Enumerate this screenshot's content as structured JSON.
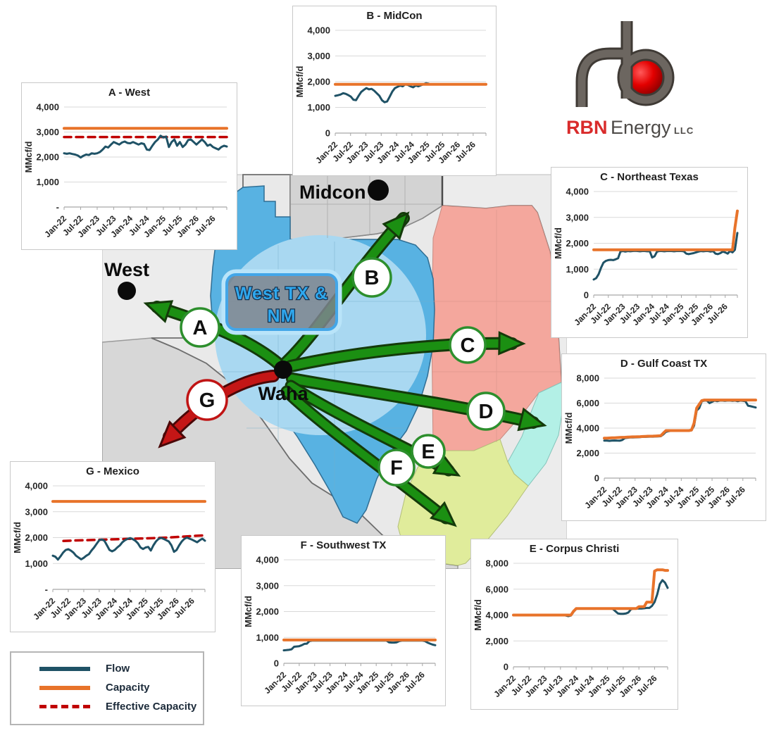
{
  "logo": {
    "brand_red": "RBN",
    "brand_gray": "Energy",
    "brand_suffix": "LLC"
  },
  "legend": {
    "items": [
      {
        "label": "Flow",
        "color": "#1F5266",
        "style": "solid"
      },
      {
        "label": "Capacity",
        "color": "#E8732A",
        "style": "solid"
      },
      {
        "label": "Effective Capacity",
        "color": "#C00000",
        "style": "dashed"
      }
    ]
  },
  "map": {
    "hub_label": "Waha",
    "west_label": "West",
    "midcon_label": "Midcon",
    "region_box": {
      "line1": "West TX &",
      "line2": "NM"
    },
    "arrows": [
      {
        "label": "A",
        "destination": "West",
        "color": "#1B8F12"
      },
      {
        "label": "B",
        "destination": "MidCon",
        "color": "#1B8F12"
      },
      {
        "label": "C",
        "destination": "Northeast Texas",
        "color": "#1B8F12"
      },
      {
        "label": "D",
        "destination": "Gulf Coast TX",
        "color": "#1B8F12"
      },
      {
        "label": "E",
        "destination": "Corpus Christi",
        "color": "#1B8F12"
      },
      {
        "label": "F",
        "destination": "Southwest TX",
        "color": "#1B8F12"
      },
      {
        "label": "G",
        "destination": "Mexico",
        "color": "#C41616"
      }
    ]
  },
  "chart_data": [
    {
      "id": "A",
      "type": "line",
      "title": "A - West",
      "ylabel": "MMcf/d",
      "ylim": [
        0,
        4000
      ],
      "yticks": [
        4000,
        3000,
        2000,
        1000,
        0
      ],
      "yticklabels": [
        "4,000",
        "3,000",
        "2,000",
        "1,000",
        "-"
      ],
      "categories": [
        "Jan-22",
        "Jul-22",
        "Jan-23",
        "Jul-23",
        "Jan-24",
        "Jul-24",
        "Jan-25",
        "Jul-25",
        "Jan-26",
        "Jul-26"
      ],
      "series": [
        {
          "name": "Capacity",
          "color": "#E8732A",
          "width": 4,
          "dash": "",
          "values": [
            3150,
            3150
          ]
        },
        {
          "name": "Effective Capacity",
          "color": "#C00000",
          "width": 3.5,
          "dash": "10 7",
          "values": [
            2800,
            2800
          ]
        },
        {
          "name": "Flow",
          "color": "#1F5266",
          "width": 3,
          "dash": "",
          "values": [
            2150,
            2130,
            2150,
            2120,
            2100,
            2060,
            1980,
            2050,
            2100,
            2080,
            2150,
            2130,
            2150,
            2200,
            2300,
            2420,
            2380,
            2500,
            2600,
            2550,
            2500,
            2580,
            2620,
            2560,
            2550,
            2600,
            2550,
            2500,
            2550,
            2520,
            2300,
            2280,
            2450,
            2600,
            2700,
            2850,
            2780,
            2820,
            2400,
            2600,
            2700,
            2450,
            2600,
            2400,
            2500,
            2680,
            2700,
            2600,
            2500,
            2600,
            2700,
            2600,
            2450,
            2500,
            2400,
            2350,
            2300,
            2400,
            2450,
            2420
          ]
        }
      ]
    },
    {
      "id": "B",
      "type": "line",
      "title": "B - MidCon",
      "ylabel": "MMcf/d",
      "ylim": [
        0,
        4000
      ],
      "yticks": [
        4000,
        3000,
        2000,
        1000,
        0
      ],
      "yticklabels": [
        "4,000",
        "3,000",
        "2,000",
        "1,000",
        "0"
      ],
      "categories": [
        "Jan-22",
        "Jul-22",
        "Jan-23",
        "Jul-23",
        "Jan-24",
        "Jul-24",
        "Jan-25",
        "Jul-25",
        "Jan-26",
        "Jul-26"
      ],
      "series": [
        {
          "name": "Flow",
          "color": "#1F5266",
          "width": 3,
          "dash": "",
          "x_end": 0.62,
          "values": [
            1450,
            1470,
            1500,
            1550,
            1530,
            1480,
            1420,
            1300,
            1280,
            1450,
            1600,
            1680,
            1750,
            1700,
            1720,
            1650,
            1550,
            1450,
            1280,
            1200,
            1230,
            1420,
            1620,
            1750,
            1800,
            1850,
            1820,
            1900,
            1870,
            1820,
            1780,
            1850,
            1820,
            1860,
            1900,
            1940,
            1920
          ]
        },
        {
          "name": "Capacity",
          "color": "#E8732A",
          "width": 4,
          "dash": "",
          "values": [
            1900,
            1900
          ]
        }
      ]
    },
    {
      "id": "C",
      "type": "line",
      "title": "C - Northeast Texas",
      "ylabel": "MMcf/d",
      "ylim": [
        0,
        4000
      ],
      "yticks": [
        4000,
        3000,
        2000,
        1000,
        0
      ],
      "yticklabels": [
        "4,000",
        "3,000",
        "2,000",
        "1,000",
        "0"
      ],
      "categories": [
        "Jan-22",
        "Jul-22",
        "Jan-23",
        "Jul-23",
        "Jan-24",
        "Jul-24",
        "Jan-25",
        "Jul-25",
        "Jan-26",
        "Jul-26"
      ],
      "series": [
        {
          "name": "Flow",
          "color": "#1F5266",
          "width": 3,
          "dash": "",
          "values": [
            600,
            650,
            800,
            1050,
            1250,
            1320,
            1350,
            1360,
            1350,
            1380,
            1420,
            1680,
            1700,
            1680,
            1700,
            1690,
            1700,
            1710,
            1700,
            1690,
            1700,
            1700,
            1690,
            1700,
            1450,
            1500,
            1680,
            1700,
            1700,
            1690,
            1700,
            1700,
            1700,
            1690,
            1700,
            1700,
            1700,
            1690,
            1600,
            1580,
            1600,
            1620,
            1650,
            1680,
            1700,
            1690,
            1700,
            1700,
            1680,
            1700,
            1600,
            1580,
            1620,
            1680,
            1650,
            1600,
            1700,
            1650,
            1750,
            2400
          ]
        },
        {
          "name": "Capacity",
          "color": "#E8732A",
          "width": 4,
          "dash": "",
          "values": [
            1750,
            1750,
            1750,
            1750,
            1750,
            1750,
            1750,
            1750,
            1750,
            1750,
            1750,
            1750,
            1750,
            1750,
            1750,
            1750,
            1750,
            1750,
            1750,
            1750,
            1750,
            1750,
            1750,
            1750,
            1750,
            1750,
            1750,
            1750,
            1750,
            1750,
            1750,
            1750,
            1750,
            1750,
            1750,
            1750,
            1750,
            1750,
            1750,
            1750,
            1750,
            1750,
            1750,
            1750,
            1750,
            1750,
            1750,
            1750,
            1750,
            1750,
            1750,
            1750,
            1750,
            1750,
            1750,
            1750,
            1750,
            1750,
            2600,
            3250
          ]
        }
      ]
    },
    {
      "id": "D",
      "type": "line",
      "title": "D - Gulf Coast TX",
      "ylabel": "MMcf/d",
      "ylim": [
        0,
        8000
      ],
      "yticks": [
        8000,
        6000,
        4000,
        2000,
        0
      ],
      "yticklabels": [
        "8,000",
        "6,000",
        "4,000",
        "2,000",
        "0"
      ],
      "categories": [
        "Jan-22",
        "Jul-22",
        "Jan-23",
        "Jul-23",
        "Jan-24",
        "Jul-24",
        "Jan-25",
        "Jul-25",
        "Jan-26",
        "Jul-26"
      ],
      "series": [
        {
          "name": "Flow",
          "color": "#1F5266",
          "width": 3,
          "dash": "",
          "values": [
            3000,
            3000,
            2980,
            3000,
            3010,
            3000,
            2990,
            3050,
            3200,
            3230,
            3250,
            3250,
            3260,
            3270,
            3280,
            3300,
            3300,
            3310,
            3320,
            3320,
            3330,
            3340,
            3350,
            3500,
            3700,
            3750,
            3780,
            3800,
            3800,
            3790,
            3800,
            3800,
            3800,
            3800,
            3820,
            4200,
            5400,
            5600,
            6150,
            6200,
            6200,
            6000,
            6100,
            6200,
            6150,
            6200,
            6200,
            6180,
            6200,
            6200,
            6180,
            6200,
            6150,
            6200,
            6180,
            6150,
            5800,
            5750,
            5700,
            5650
          ]
        },
        {
          "name": "Capacity",
          "color": "#E8732A",
          "width": 4,
          "dash": "",
          "values": [
            3200,
            3200,
            3210,
            3220,
            3230,
            3240,
            3250,
            3260,
            3270,
            3280,
            3290,
            3300,
            3300,
            3310,
            3320,
            3330,
            3340,
            3350,
            3350,
            3360,
            3370,
            3380,
            3390,
            3600,
            3800,
            3800,
            3800,
            3800,
            3800,
            3800,
            3800,
            3800,
            3800,
            3800,
            3850,
            4400,
            5600,
            5900,
            6200,
            6250,
            6250,
            6250,
            6250,
            6250,
            6250,
            6250,
            6250,
            6250,
            6250,
            6250,
            6250,
            6250,
            6250,
            6250,
            6250,
            6250,
            6250,
            6250,
            6250,
            6250
          ]
        }
      ]
    },
    {
      "id": "E",
      "type": "line",
      "title": "E - Corpus Christi",
      "ylabel": "MMcf/d",
      "ylim": [
        0,
        8000
      ],
      "yticks": [
        8000,
        6000,
        4000,
        2000,
        0
      ],
      "yticklabels": [
        "8,000",
        "6,000",
        "4,000",
        "2,000",
        "0"
      ],
      "categories": [
        "Jan-22",
        "Jul-22",
        "Jan-23",
        "Jul-23",
        "Jan-24",
        "Jul-24",
        "Jan-25",
        "Jul-25",
        "Jan-26",
        "Jul-26"
      ],
      "series": [
        {
          "name": "Flow",
          "color": "#1F5266",
          "width": 3,
          "dash": "",
          "values": [
            4000,
            4000,
            3990,
            4000,
            4000,
            3990,
            4000,
            4000,
            3990,
            4000,
            4000,
            4000,
            4000,
            4000,
            4000,
            4000,
            4000,
            4000,
            4000,
            4000,
            3960,
            3920,
            3960,
            4250,
            4480,
            4500,
            4500,
            4500,
            4500,
            4500,
            4500,
            4500,
            4500,
            4500,
            4500,
            4500,
            4500,
            4500,
            4480,
            4300,
            4120,
            4100,
            4100,
            4120,
            4200,
            4450,
            4500,
            4500,
            4500,
            4500,
            4520,
            4550,
            4550,
            4700,
            5000,
            5600,
            6400,
            6700,
            6500,
            6100
          ]
        },
        {
          "name": "Capacity",
          "color": "#E8732A",
          "width": 4,
          "dash": "",
          "values": [
            4000,
            4000,
            4000,
            4000,
            4000,
            4000,
            4000,
            4000,
            4000,
            4000,
            4000,
            4000,
            4000,
            4000,
            4000,
            4000,
            4000,
            4000,
            4000,
            4000,
            4000,
            4000,
            4000,
            4300,
            4500,
            4500,
            4500,
            4500,
            4500,
            4500,
            4500,
            4500,
            4500,
            4500,
            4500,
            4500,
            4500,
            4500,
            4500,
            4500,
            4500,
            4500,
            4500,
            4500,
            4500,
            4500,
            4500,
            4500,
            4650,
            4650,
            4650,
            5000,
            5000,
            5000,
            7400,
            7500,
            7500,
            7500,
            7450,
            7450
          ]
        }
      ]
    },
    {
      "id": "F",
      "type": "line",
      "title": "F - Southwest TX",
      "ylabel": "MMcf/d",
      "ylim": [
        0,
        4000
      ],
      "yticks": [
        4000,
        3000,
        2000,
        1000,
        0
      ],
      "yticklabels": [
        "4,000",
        "3,000",
        "2,000",
        "1,000",
        "0"
      ],
      "categories": [
        "Jan-22",
        "Jul-22",
        "Jan-23",
        "Jul-23",
        "Jan-24",
        "Jul-24",
        "Jan-25",
        "Jul-25",
        "Jan-26",
        "Jul-26"
      ],
      "series": [
        {
          "name": "Flow",
          "color": "#1F5266",
          "width": 3,
          "dash": "",
          "values": [
            500,
            510,
            520,
            540,
            640,
            650,
            660,
            700,
            750,
            760,
            860,
            875,
            875,
            875,
            875,
            875,
            875,
            875,
            875,
            875,
            875,
            875,
            875,
            875,
            875,
            875,
            875,
            875,
            875,
            875,
            875,
            875,
            875,
            875,
            875,
            875,
            875,
            875,
            875,
            875,
            875,
            810,
            800,
            800,
            810,
            860,
            875,
            875,
            875,
            875,
            875,
            875,
            875,
            875,
            875,
            860,
            800,
            760,
            720,
            700
          ]
        },
        {
          "name": "Capacity",
          "color": "#E8732A",
          "width": 4,
          "dash": "",
          "values": [
            900,
            900
          ]
        }
      ]
    },
    {
      "id": "G",
      "type": "line",
      "title": "G - Mexico",
      "ylabel": "MMcf/d",
      "ylim": [
        0,
        4000
      ],
      "yticks": [
        4000,
        3000,
        2000,
        1000,
        0
      ],
      "yticklabels": [
        "4,000",
        "3,000",
        "2,000",
        "1,000",
        "-"
      ],
      "categories": [
        "Jan-22",
        "Jul-22",
        "Jan-23",
        "Jul-23",
        "Jan-24",
        "Jul-24",
        "Jan-25",
        "Jul-25",
        "Jan-26",
        "Jul-26"
      ],
      "series": [
        {
          "name": "Capacity",
          "color": "#E8732A",
          "width": 4,
          "dash": "",
          "values": [
            3400,
            3400
          ]
        },
        {
          "name": "Effective Capacity",
          "color": "#C00000",
          "width": 3.5,
          "dash": "10 7",
          "x_start": 0.07,
          "values": [
            1870,
            1890,
            1905,
            1920,
            1935,
            1950,
            1965,
            1980,
            2000,
            2030,
            2060,
            2090
          ]
        },
        {
          "name": "Flow",
          "color": "#1F5266",
          "width": 3,
          "dash": "",
          "values": [
            1300,
            1260,
            1150,
            1280,
            1420,
            1520,
            1550,
            1500,
            1420,
            1300,
            1230,
            1160,
            1220,
            1300,
            1360,
            1500,
            1620,
            1760,
            1900,
            1930,
            1880,
            1700,
            1520,
            1470,
            1520,
            1620,
            1700,
            1820,
            1900,
            1950,
            1980,
            1940,
            1880,
            1780,
            1620,
            1560,
            1620,
            1640,
            1500,
            1700,
            1850,
            1950,
            1990,
            1950,
            1900,
            1850,
            1700,
            1450,
            1520,
            1700,
            1850,
            1950,
            2000,
            1960,
            1920,
            1870,
            1820,
            1900,
            1960,
            1880
          ]
        }
      ]
    }
  ]
}
